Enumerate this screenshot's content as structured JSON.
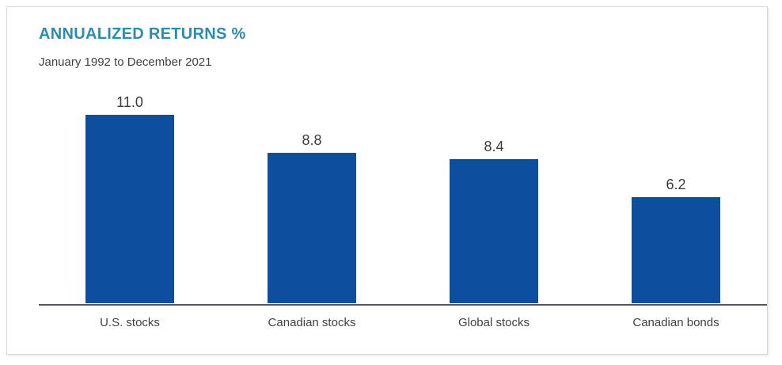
{
  "card": {
    "background": "#ffffff",
    "border_color": "#d6d6d6"
  },
  "chart_data": {
    "type": "bar",
    "title": "ANNUALIZED RETURNS %",
    "subtitle": "January 1992 to December 2021",
    "categories": [
      "U.S. stocks",
      "Canadian stocks",
      "Global stocks",
      "Canadian bonds"
    ],
    "values": [
      11.0,
      8.8,
      8.4,
      6.2
    ],
    "value_labels": [
      "11.0",
      "8.8",
      "8.4",
      "6.2"
    ],
    "xlabel": "",
    "ylabel": "",
    "ylim": [
      0,
      11.0
    ],
    "gridlines": false,
    "legend": "none",
    "y_axis_visible": false,
    "x_axis_line": true,
    "bar_color": "#0e4e9f",
    "title_color": "#2b8cb3",
    "text_color": "#414042",
    "axis_color": "#55565a"
  }
}
